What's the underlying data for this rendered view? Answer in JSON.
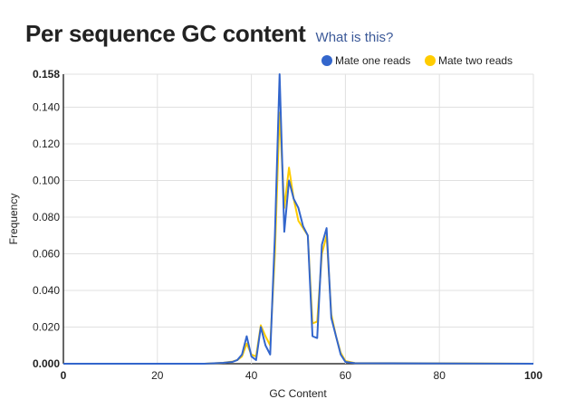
{
  "header": {
    "title": "Per sequence GC content",
    "help_link": "What is this?"
  },
  "chart_data": {
    "type": "line",
    "title": "Per sequence GC content",
    "xlabel": "GC Content",
    "ylabel": "Frequency",
    "xlim": [
      0,
      100
    ],
    "ylim": [
      0,
      0.158
    ],
    "x_ticks": [
      {
        "value": 0,
        "label": "0",
        "bold": true
      },
      {
        "value": 20,
        "label": "20",
        "bold": false
      },
      {
        "value": 40,
        "label": "40",
        "bold": false
      },
      {
        "value": 60,
        "label": "60",
        "bold": false
      },
      {
        "value": 80,
        "label": "80",
        "bold": false
      },
      {
        "value": 100,
        "label": "100",
        "bold": true
      }
    ],
    "y_ticks": [
      {
        "value": 0.0,
        "label": "0.000",
        "bold": true
      },
      {
        "value": 0.02,
        "label": "0.020",
        "bold": false
      },
      {
        "value": 0.04,
        "label": "0.040",
        "bold": false
      },
      {
        "value": 0.06,
        "label": "0.060",
        "bold": false
      },
      {
        "value": 0.08,
        "label": "0.080",
        "bold": false
      },
      {
        "value": 0.1,
        "label": "0.100",
        "bold": false
      },
      {
        "value": 0.12,
        "label": "0.120",
        "bold": false
      },
      {
        "value": 0.14,
        "label": "0.140",
        "bold": false
      },
      {
        "value": 0.158,
        "label": "0.158",
        "bold": true
      }
    ],
    "grid": true,
    "legend_position": "top-right",
    "series": [
      {
        "name": "Mate one reads",
        "color": "#3366cc",
        "points": [
          [
            0,
            0
          ],
          [
            30,
            0
          ],
          [
            34,
            0.0005
          ],
          [
            36,
            0.001
          ],
          [
            37,
            0.002
          ],
          [
            38,
            0.005
          ],
          [
            39,
            0.015
          ],
          [
            40,
            0.004
          ],
          [
            41,
            0.002
          ],
          [
            42,
            0.02
          ],
          [
            43,
            0.01
          ],
          [
            44,
            0.005
          ],
          [
            45,
            0.07
          ],
          [
            46,
            0.158
          ],
          [
            47,
            0.072
          ],
          [
            48,
            0.1
          ],
          [
            49,
            0.09
          ],
          [
            50,
            0.085
          ],
          [
            51,
            0.075
          ],
          [
            52,
            0.07
          ],
          [
            53,
            0.015
          ],
          [
            54,
            0.014
          ],
          [
            55,
            0.065
          ],
          [
            56,
            0.074
          ],
          [
            57,
            0.025
          ],
          [
            58,
            0.015
          ],
          [
            59,
            0.005
          ],
          [
            60,
            0.001
          ],
          [
            62,
            0.0003
          ],
          [
            100,
            0
          ]
        ]
      },
      {
        "name": "Mate two reads",
        "color": "#ffcc00",
        "points": [
          [
            0,
            0
          ],
          [
            30,
            0
          ],
          [
            34,
            0.0005
          ],
          [
            36,
            0.0012
          ],
          [
            37,
            0.002
          ],
          [
            38,
            0.004
          ],
          [
            39,
            0.011
          ],
          [
            40,
            0.005
          ],
          [
            41,
            0.004
          ],
          [
            42,
            0.021
          ],
          [
            43,
            0.015
          ],
          [
            44,
            0.01
          ],
          [
            45,
            0.06
          ],
          [
            46,
            0.137
          ],
          [
            47,
            0.085
          ],
          [
            48,
            0.107
          ],
          [
            49,
            0.09
          ],
          [
            50,
            0.078
          ],
          [
            51,
            0.074
          ],
          [
            52,
            0.07
          ],
          [
            53,
            0.022
          ],
          [
            54,
            0.023
          ],
          [
            55,
            0.06
          ],
          [
            56,
            0.07
          ],
          [
            57,
            0.027
          ],
          [
            58,
            0.015
          ],
          [
            59,
            0.006
          ],
          [
            60,
            0.0015
          ],
          [
            62,
            0.0004
          ],
          [
            100,
            0
          ]
        ]
      }
    ]
  }
}
